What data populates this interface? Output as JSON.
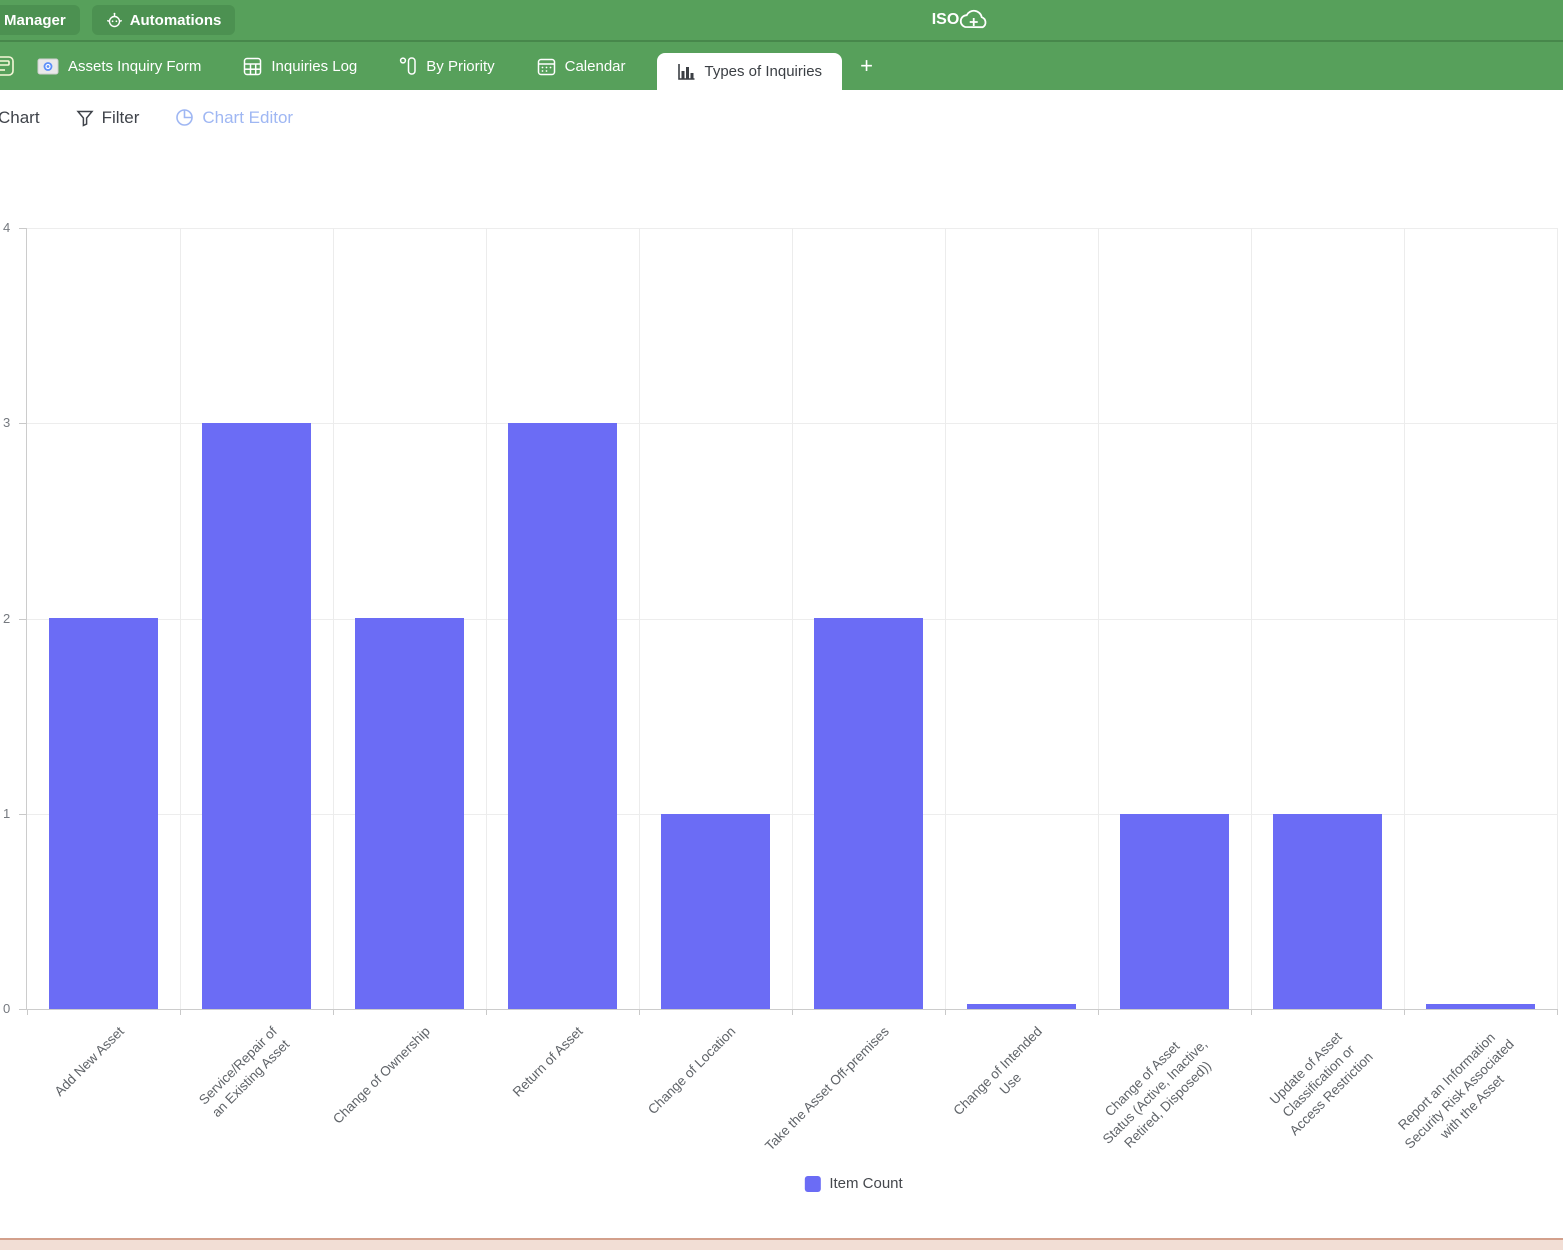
{
  "topbar": {
    "manager_label": "Manager",
    "automations_label": "Automations",
    "logo_text": "ISO"
  },
  "tabbar": {
    "tabs": [
      {
        "label": "Assets Inquiry Form",
        "icon": "form-image-icon",
        "active": false
      },
      {
        "label": "Inquiries Log",
        "icon": "table-icon",
        "active": false
      },
      {
        "label": "By Priority",
        "icon": "kanban-icon",
        "active": false
      },
      {
        "label": "Calendar",
        "icon": "calendar-icon",
        "active": false
      },
      {
        "label": "Types of Inquiries",
        "icon": "bar-chart-icon",
        "active": true
      }
    ],
    "add_tab_label": "+"
  },
  "toolbar": {
    "chart_label": "Chart",
    "filter_label": "Filter",
    "chart_editor_label": "Chart Editor"
  },
  "chart_data": {
    "type": "bar",
    "title": "",
    "categories": [
      "Add New Asset",
      "Service/Repair of\nan Existing Asset",
      "Change of Ownership",
      "Return of Asset",
      "Change of Location",
      "Take the Asset Off-premises",
      "Change of Intended\nUse",
      "Change of Asset\nStatus (Active, Inactive,\nRetired, Disposed))",
      "Update of Asset\nClassification or\nAccess Restriction",
      "Report an Information\nSecurity Risk Associated\nwith the Asset"
    ],
    "values": [
      2,
      3,
      2,
      3,
      1,
      2,
      0,
      1,
      1,
      0
    ],
    "series": [
      {
        "name": "Item Count",
        "values": [
          2,
          3,
          2,
          3,
          1,
          2,
          0,
          1,
          1,
          0
        ]
      }
    ],
    "xlabel": "",
    "ylabel": "",
    "ylim": [
      0,
      4
    ],
    "y_ticks": [
      0,
      1,
      2,
      3,
      4
    ],
    "grid": true,
    "bar_color": "#6b6cf5",
    "legend": {
      "label": "Item Count",
      "position": "bottom"
    }
  },
  "colors": {
    "header_green": "#57a05b",
    "header_button_green": "#4c9151",
    "bar_purple": "#6b6cf5",
    "chart_editor_accent": "#9fb7f3",
    "bottom_strip": "#f2ded5",
    "bottom_strip_border": "#d3a08c"
  }
}
